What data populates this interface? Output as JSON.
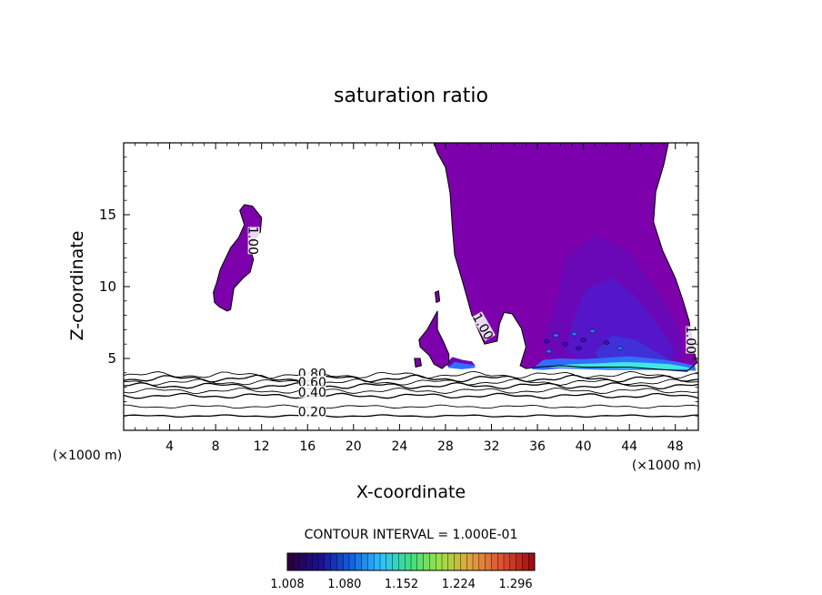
{
  "chart_data": {
    "type": "contour",
    "title": "saturation ratio",
    "xlabel": "X-coordinate",
    "ylabel": "Z-coordinate",
    "x_unit_left": "(×1000 m)",
    "x_unit_right": "(×1000 m)",
    "xlim": [
      0,
      50
    ],
    "ylim": [
      0,
      20
    ],
    "x_ticks": [
      4,
      8,
      12,
      16,
      20,
      24,
      28,
      32,
      36,
      40,
      44,
      48
    ],
    "y_ticks": [
      5,
      10,
      15
    ],
    "contour_interval_text": "CONTOUR INTERVAL = 1.000E-01",
    "contour_labels": [
      {
        "text": "1.00",
        "x": 11.2,
        "z": 13.2,
        "rotate": 90
      },
      {
        "text": "1.00",
        "x": 31.2,
        "z": 7.2,
        "rotate": 60
      },
      {
        "text": "1.00",
        "x": 49.3,
        "z": 6.3,
        "rotate": 90
      },
      {
        "text": "0.80",
        "x": 16.4,
        "z": 3.9,
        "rotate": 0
      },
      {
        "text": "0.60",
        "x": 16.4,
        "z": 3.3,
        "rotate": 0
      },
      {
        "text": "0.40",
        "x": 16.4,
        "z": 2.6,
        "rotate": 0
      },
      {
        "text": "0.20",
        "x": 16.4,
        "z": 1.25,
        "rotate": 0
      }
    ],
    "low_levels": [
      {
        "level": 0.2,
        "z": 1.0,
        "amp": 0.08
      },
      {
        "level": 0.3,
        "z": 1.65,
        "amp": 0.12
      },
      {
        "level": 0.4,
        "z": 2.4,
        "amp": 0.18
      },
      {
        "level": 0.5,
        "z": 2.75,
        "amp": 0.2
      },
      {
        "level": 0.6,
        "z": 3.1,
        "amp": 0.22
      },
      {
        "level": 0.7,
        "z": 3.35,
        "amp": 0.22
      },
      {
        "level": 0.8,
        "z": 3.6,
        "amp": 0.25
      },
      {
        "level": 0.9,
        "z": 3.85,
        "amp": 0.25
      }
    ],
    "colorbar": {
      "ticks": [
        "1.008",
        "1.080",
        "1.152",
        "1.224",
        "1.296"
      ],
      "min": 1.008,
      "max": 1.32,
      "colors": [
        "#2a0040",
        "#1a1090",
        "#1060e0",
        "#30c0ff",
        "#40e080",
        "#a0e040",
        "#e0a040",
        "#e05030",
        "#a01010"
      ]
    },
    "colors": {
      "supersat": "#7c00ac",
      "supersat_2": "#6a08b8",
      "supersat_3": "#5515c8",
      "highsat": "#3070ff",
      "peak": "#40e8e0"
    }
  }
}
